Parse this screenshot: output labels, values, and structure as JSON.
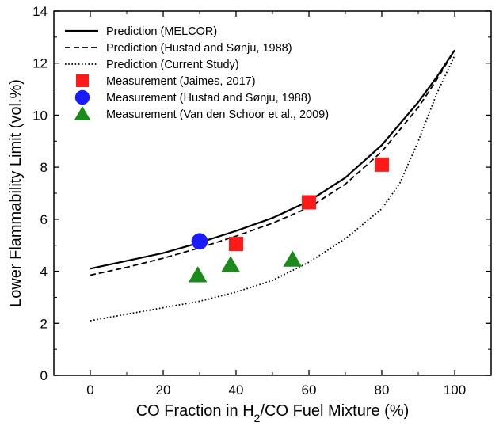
{
  "chart_data": {
    "type": "line",
    "xlabel_parts": [
      "CO Fraction in H",
      "2",
      "/CO Fuel Mixture (%)"
    ],
    "ylabel": "Lower Flammability Limit (vol.%)",
    "xlim": [
      -10,
      110
    ],
    "ylim": [
      0,
      14
    ],
    "x_ticks": [
      0,
      20,
      40,
      60,
      80,
      100
    ],
    "y_ticks": [
      0,
      2,
      4,
      6,
      8,
      10,
      12,
      14
    ],
    "grid": false,
    "legend_position": "top-left",
    "series": [
      {
        "name": "Prediction (MELCOR)",
        "kind": "line",
        "dash": "solid",
        "color": "#000000",
        "x": [
          0,
          10,
          20,
          30,
          40,
          50,
          60,
          70,
          80,
          90,
          95,
          100
        ],
        "y": [
          4.1,
          4.4,
          4.7,
          5.1,
          5.55,
          6.05,
          6.7,
          7.6,
          8.85,
          10.5,
          11.45,
          12.5
        ]
      },
      {
        "name": "Prediction (Hustad and Sønju, 1988)",
        "kind": "line",
        "dash": "dashed",
        "color": "#000000",
        "x": [
          0,
          10,
          20,
          30,
          40,
          50,
          60,
          70,
          80,
          90,
          95,
          100
        ],
        "y": [
          3.85,
          4.15,
          4.5,
          4.9,
          5.35,
          5.85,
          6.45,
          7.35,
          8.6,
          10.3,
          11.35,
          12.5
        ]
      },
      {
        "name": "Prediction (Current Study)",
        "kind": "line",
        "dash": "dotted",
        "color": "#000000",
        "x": [
          0,
          10,
          20,
          30,
          40,
          50,
          60,
          70,
          80,
          85,
          90,
          95,
          100
        ],
        "y": [
          2.1,
          2.35,
          2.6,
          2.85,
          3.2,
          3.65,
          4.35,
          5.25,
          6.4,
          7.4,
          9.0,
          10.8,
          12.3
        ]
      },
      {
        "name": "Measurement (Jaimes, 2017)",
        "kind": "marker",
        "marker": "square",
        "color": "#ff1a1a",
        "x": [
          40,
          60,
          80
        ],
        "y": [
          5.05,
          6.65,
          8.1
        ]
      },
      {
        "name": "Measurement (Hustad and Sønju, 1988)",
        "kind": "marker",
        "marker": "circle",
        "color": "#1a1aff",
        "x": [
          30
        ],
        "y": [
          5.15
        ]
      },
      {
        "name": "Measurement (Van den Schoor et al., 2009)",
        "kind": "marker",
        "marker": "triangle",
        "color": "#1a8a1a",
        "x": [
          29.5,
          38.5,
          55.5
        ],
        "y": [
          3.85,
          4.25,
          4.45
        ]
      }
    ]
  }
}
